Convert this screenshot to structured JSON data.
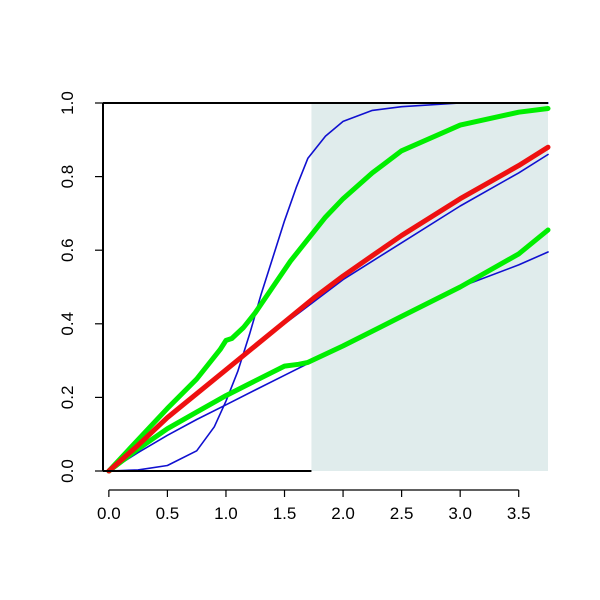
{
  "chart_data": {
    "type": "line",
    "title": "",
    "xlabel": "",
    "ylabel": "",
    "xlim": [
      -0.05,
      3.75
    ],
    "ylim": [
      0,
      1
    ],
    "x_ticks": [
      "0.0",
      "0.5",
      "1.0",
      "1.5",
      "2.0",
      "2.5",
      "3.0",
      "3.5"
    ],
    "y_ticks": [
      "0.0",
      "0.2",
      "0.4",
      "0.6",
      "0.8",
      "1.0"
    ],
    "grid": false,
    "legend": "none",
    "shaded_region": {
      "x_from": 1.73,
      "x_to": 3.75,
      "color": "#e0ecec"
    },
    "series": [
      {
        "color": "#1010d0",
        "style": "thin",
        "points": [
          [
            0,
            0
          ],
          [
            0.25,
            0.003
          ],
          [
            0.5,
            0.015
          ],
          [
            0.75,
            0.055
          ],
          [
            0.9,
            0.12
          ],
          [
            1.0,
            0.19
          ],
          [
            1.1,
            0.27
          ],
          [
            1.2,
            0.37
          ],
          [
            1.3,
            0.48
          ],
          [
            1.4,
            0.58
          ],
          [
            1.5,
            0.68
          ],
          [
            1.6,
            0.77
          ],
          [
            1.7,
            0.85
          ],
          [
            1.85,
            0.91
          ],
          [
            2.0,
            0.95
          ],
          [
            2.25,
            0.98
          ],
          [
            2.5,
            0.99
          ],
          [
            3.0,
            1.0
          ],
          [
            3.75,
            1.0
          ]
        ]
      },
      {
        "color": "#1010d0",
        "style": "thin",
        "points": [
          [
            0,
            0
          ],
          [
            0.25,
            0.05
          ],
          [
            0.5,
            0.097
          ],
          [
            0.75,
            0.14
          ],
          [
            1.0,
            0.18
          ],
          [
            1.25,
            0.22
          ],
          [
            1.5,
            0.26
          ],
          [
            1.75,
            0.3
          ],
          [
            2.0,
            0.34
          ],
          [
            2.5,
            0.42
          ],
          [
            3.0,
            0.5
          ],
          [
            3.5,
            0.56
          ],
          [
            3.75,
            0.595
          ]
        ]
      },
      {
        "color": "#1010d0",
        "style": "thin",
        "points": [
          [
            0,
            0
          ],
          [
            0.25,
            0.07
          ],
          [
            0.5,
            0.145
          ],
          [
            0.75,
            0.21
          ],
          [
            1.0,
            0.275
          ],
          [
            1.25,
            0.34
          ],
          [
            1.5,
            0.4
          ],
          [
            1.75,
            0.46
          ],
          [
            2.0,
            0.52
          ],
          [
            2.25,
            0.57
          ],
          [
            2.5,
            0.62
          ],
          [
            3.0,
            0.72
          ],
          [
            3.5,
            0.81
          ],
          [
            3.75,
            0.86
          ]
        ]
      },
      {
        "color": "#00ee00",
        "style": "thick",
        "points": [
          [
            0,
            0
          ],
          [
            0.25,
            0.085
          ],
          [
            0.5,
            0.17
          ],
          [
            0.75,
            0.25
          ],
          [
            0.95,
            0.33
          ],
          [
            1.0,
            0.355
          ],
          [
            1.05,
            0.36
          ],
          [
            1.15,
            0.39
          ],
          [
            1.25,
            0.43
          ],
          [
            1.4,
            0.5
          ],
          [
            1.55,
            0.57
          ],
          [
            1.7,
            0.63
          ],
          [
            1.85,
            0.69
          ],
          [
            2.0,
            0.74
          ],
          [
            2.25,
            0.81
          ],
          [
            2.5,
            0.87
          ],
          [
            3.0,
            0.94
          ],
          [
            3.5,
            0.975
          ],
          [
            3.75,
            0.985
          ]
        ]
      },
      {
        "color": "#00ee00",
        "style": "thick",
        "points": [
          [
            0,
            0
          ],
          [
            0.25,
            0.06
          ],
          [
            0.5,
            0.115
          ],
          [
            0.75,
            0.16
          ],
          [
            1.0,
            0.205
          ],
          [
            1.25,
            0.245
          ],
          [
            1.5,
            0.285
          ],
          [
            1.62,
            0.29
          ],
          [
            1.7,
            0.295
          ],
          [
            2.0,
            0.34
          ],
          [
            2.5,
            0.42
          ],
          [
            3.0,
            0.5
          ],
          [
            3.5,
            0.59
          ],
          [
            3.75,
            0.655
          ]
        ]
      },
      {
        "color": "#ee1010",
        "style": "thick",
        "points": [
          [
            0,
            0
          ],
          [
            0.25,
            0.07
          ],
          [
            0.5,
            0.145
          ],
          [
            0.75,
            0.21
          ],
          [
            1.0,
            0.275
          ],
          [
            1.25,
            0.34
          ],
          [
            1.5,
            0.405
          ],
          [
            1.75,
            0.47
          ],
          [
            2.0,
            0.53
          ],
          [
            2.25,
            0.585
          ],
          [
            2.5,
            0.64
          ],
          [
            3.0,
            0.74
          ],
          [
            3.5,
            0.83
          ],
          [
            3.75,
            0.88
          ]
        ]
      }
    ]
  }
}
